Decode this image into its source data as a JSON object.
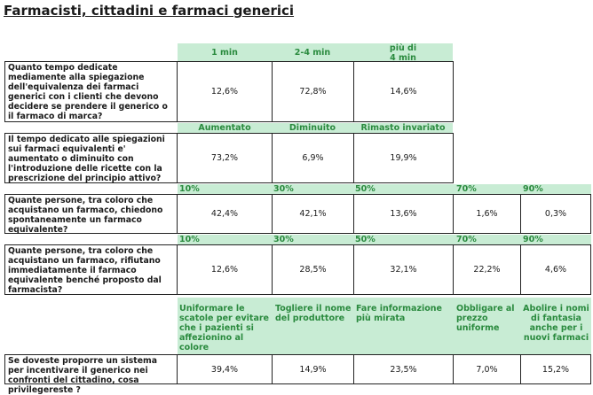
{
  "title": "Farmacisti, cittadini e farmaci generici",
  "table1": {
    "headers": [
      "1 min",
      "2-4 min",
      "più di\n4 min"
    ],
    "question": "Quanto tempo dedicate mediamente alla spiegazione dell'equivalenza dei farmaci generici con i clienti che devono decidere se prendere il generico o il farmaco di marca?",
    "values": [
      "12,6%",
      "72,8%",
      "14,6%"
    ]
  },
  "table2": {
    "headers": [
      "Aumentato",
      "Diminuito",
      "Rimasto invariato"
    ],
    "question": "Il tempo dedicato alle spiegazioni sui farmaci equivalenti e' aumentato o diminuito con l'introduzione delle ricette con la prescrizione del principio attivo?",
    "values": [
      "73,2%",
      "6,9%",
      "19,9%"
    ]
  },
  "table3": {
    "headers": [
      "10%",
      "30%",
      "50%",
      "70%",
      "90%"
    ],
    "question": "Quante persone, tra coloro che acquistano un farmaco, chiedono spontaneamente un farmaco equivalente?",
    "values": [
      "42,4%",
      "42,1%",
      "13,6%",
      "1,6%",
      "0,3%"
    ]
  },
  "table4": {
    "headers": [
      "10%",
      "30%",
      "50%",
      "70%",
      "90%"
    ],
    "question": "Quante persone, tra coloro che acquistano un farmaco, rifiutano immediatamente il farmaco equivalente benché proposto dal farmacista?",
    "values": [
      "12,6%",
      "28,5%",
      "32,1%",
      "22,2%",
      "4,6%"
    ]
  },
  "table5": {
    "headers": [
      "Uniformare le scatole per evitare che i pazienti si affezionino al colore",
      "Togliere il nome del produttore",
      "Fare informazione più mirata",
      "Obbligare al prezzo uniforme",
      "Abolire i nomi di fantasia anche per i nuovi farmaci"
    ],
    "question": "Se doveste proporre un sistema per incentivare il generico nei confronti del cittadino, cosa privilegereste ?",
    "values": [
      "39,4%",
      "14,9%",
      "23,5%",
      "7,0%",
      "15,2%"
    ]
  }
}
